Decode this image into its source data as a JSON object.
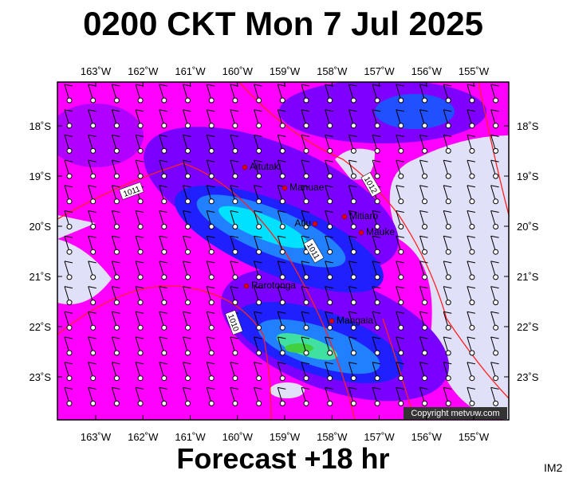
{
  "header": {
    "title": "0200 CKT Mon 7 Jul 2025"
  },
  "footer": {
    "forecast": "Forecast +18 hr",
    "code": "IM2"
  },
  "map": {
    "copyright": "Copyright metvuw.com",
    "lon_labels": [
      "163˚W",
      "162˚W",
      "161˚W",
      "160˚W",
      "159˚W",
      "158˚W",
      "157˚W",
      "156˚W",
      "155˚W"
    ],
    "lat_labels": [
      "18˚S",
      "19˚S",
      "20˚S",
      "21˚S",
      "22˚S",
      "23˚S"
    ],
    "places": [
      "Aitutaki",
      "Manuae",
      "Atiu",
      "Mitiaro",
      "Mauke",
      "Rarotonga",
      "Mangaia"
    ],
    "isobar_labels": [
      "1011",
      "1012",
      "1011",
      "1010"
    ]
  }
}
